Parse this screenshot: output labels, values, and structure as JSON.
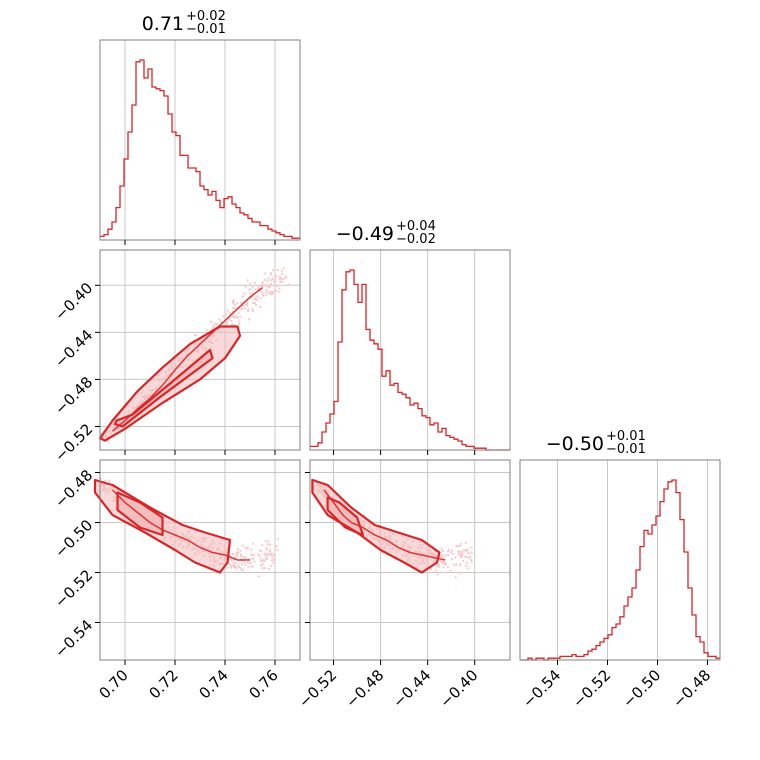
{
  "chart_data": {
    "type": "corner",
    "color": "#d62728",
    "fill_color": "#f3b8ba",
    "scatter_color": "#f7c9ca",
    "grid": true,
    "parameters": [
      {
        "index": 0,
        "title": {
          "median": "0.71",
          "plus": "+0.02",
          "minus": "−0.01"
        },
        "range": [
          0.69,
          0.77
        ],
        "ticks": [
          0.7,
          0.72,
          0.74,
          0.76
        ],
        "tick_labels": [
          "0.70",
          "0.72",
          "0.74",
          "0.76"
        ]
      },
      {
        "index": 1,
        "title": {
          "median": "−0.49",
          "plus": "+0.04",
          "minus": "−0.02"
        },
        "range": [
          -0.54,
          -0.37
        ],
        "ticks": [
          -0.52,
          -0.48,
          -0.44,
          -0.4
        ],
        "tick_labels": [
          "−0.52",
          "−0.48",
          "−0.44",
          "−0.40"
        ]
      },
      {
        "index": 2,
        "title": {
          "median": "−0.50",
          "plus": "+0.01",
          "minus": "−0.01"
        },
        "range": [
          -0.555,
          -0.475
        ],
        "ticks": [
          -0.54,
          -0.52,
          -0.5,
          -0.48
        ],
        "tick_labels": [
          "−0.54",
          "−0.52",
          "−0.50",
          "−0.48"
        ]
      }
    ],
    "histograms": [
      {
        "param": 0,
        "bins": [
          0.69,
          0.77
        ],
        "counts": [
          2,
          3,
          6,
          10,
          18,
          30,
          45,
          60,
          75,
          99,
          100,
          90,
          95,
          85,
          84,
          83,
          80,
          70,
          60,
          58,
          47,
          47,
          40,
          40,
          38,
          30,
          28,
          25,
          27,
          22,
          18,
          23,
          24,
          20,
          18,
          15,
          14,
          12,
          10,
          10,
          8,
          8,
          6,
          5,
          4,
          3,
          2,
          2,
          1,
          1
        ]
      },
      {
        "param": 1,
        "bins": [
          -0.54,
          -0.37
        ],
        "counts": [
          2,
          2,
          4,
          10,
          15,
          20,
          27,
          60,
          89,
          99,
          100,
          92,
          82,
          92,
          67,
          61,
          59,
          56,
          41,
          44,
          36,
          37,
          32,
          31,
          29,
          25,
          26,
          23,
          19,
          18,
          14,
          15,
          10,
          12,
          8,
          7,
          6,
          5,
          3,
          2,
          2,
          1,
          1,
          1,
          0,
          0,
          0,
          0,
          0,
          0
        ]
      },
      {
        "param": 2,
        "bins": [
          -0.555,
          -0.475
        ],
        "counts": [
          0,
          0,
          1,
          0,
          1,
          1,
          0,
          1,
          1,
          1,
          2,
          2,
          2,
          3,
          2,
          2,
          3,
          5,
          6,
          8,
          10,
          12,
          14,
          18,
          20,
          24,
          30,
          35,
          40,
          50,
          63,
          72,
          70,
          75,
          80,
          88,
          95,
          99,
          100,
          93,
          78,
          60,
          40,
          25,
          13,
          10,
          4,
          2,
          2,
          1
        ]
      }
    ],
    "pairs": [
      {
        "x_param": 0,
        "y_param": 1,
        "points": [
          [
            0.69,
            -0.531
          ],
          [
            0.695,
            -0.524
          ],
          [
            0.7,
            -0.515
          ],
          [
            0.705,
            -0.505
          ],
          [
            0.71,
            -0.496
          ],
          [
            0.715,
            -0.485
          ],
          [
            0.72,
            -0.472
          ],
          [
            0.725,
            -0.46
          ],
          [
            0.73,
            -0.45
          ],
          [
            0.735,
            -0.44
          ],
          [
            0.74,
            -0.43
          ],
          [
            0.745,
            -0.42
          ],
          [
            0.75,
            -0.41
          ],
          [
            0.755,
            -0.402
          ],
          [
            0.76,
            -0.398
          ],
          [
            0.765,
            -0.395
          ]
        ],
        "contours": [
          [
            [
              0.6965,
              -0.515
            ],
            [
              0.703,
              -0.51
            ],
            [
              0.72,
              -0.48
            ],
            [
              0.734,
              -0.455
            ],
            [
              0.735,
              -0.462
            ],
            [
              0.714,
              -0.495
            ],
            [
              0.699,
              -0.52
            ],
            [
              0.696,
              -0.518
            ]
          ],
          [
            [
              0.69,
              -0.53
            ],
            [
              0.692,
              -0.532
            ],
            [
              0.7,
              -0.522
            ],
            [
              0.715,
              -0.5
            ],
            [
              0.73,
              -0.48
            ],
            [
              0.74,
              -0.462
            ],
            [
              0.746,
              -0.443
            ],
            [
              0.745,
              -0.435
            ],
            [
              0.738,
              -0.435
            ],
            [
              0.726,
              -0.45
            ],
            [
              0.715,
              -0.47
            ],
            [
              0.705,
              -0.49
            ],
            [
              0.695,
              -0.515
            ]
          ]
        ]
      },
      {
        "x_param": 0,
        "y_param": 2,
        "points": [
          [
            0.69,
            -0.484
          ],
          [
            0.695,
            -0.487
          ],
          [
            0.7,
            -0.492
          ],
          [
            0.705,
            -0.496
          ],
          [
            0.71,
            -0.5
          ],
          [
            0.715,
            -0.503
          ],
          [
            0.72,
            -0.505
          ],
          [
            0.725,
            -0.507
          ],
          [
            0.73,
            -0.51
          ],
          [
            0.735,
            -0.512
          ],
          [
            0.74,
            -0.513
          ],
          [
            0.745,
            -0.515
          ],
          [
            0.75,
            -0.515
          ],
          [
            0.755,
            -0.514
          ],
          [
            0.76,
            -0.512
          ]
        ],
        "contours": [
          [
            [
              0.697,
              -0.488
            ],
            [
              0.706,
              -0.492
            ],
            [
              0.715,
              -0.498
            ],
            [
              0.715,
              -0.505
            ],
            [
              0.706,
              -0.502
            ],
            [
              0.697,
              -0.495
            ]
          ],
          [
            [
              0.688,
              -0.483
            ],
            [
              0.695,
              -0.485
            ],
            [
              0.71,
              -0.494
            ],
            [
              0.723,
              -0.501
            ],
            [
              0.732,
              -0.504
            ],
            [
              0.742,
              -0.507
            ],
            [
              0.741,
              -0.516
            ],
            [
              0.738,
              -0.52
            ],
            [
              0.728,
              -0.516
            ],
            [
              0.72,
              -0.511
            ],
            [
              0.708,
              -0.504
            ],
            [
              0.695,
              -0.497
            ],
            [
              0.688,
              -0.488
            ]
          ]
        ]
      },
      {
        "x_param": 1,
        "y_param": 2,
        "points": [
          [
            -0.535,
            -0.484
          ],
          [
            -0.528,
            -0.487
          ],
          [
            -0.52,
            -0.492
          ],
          [
            -0.512,
            -0.497
          ],
          [
            -0.505,
            -0.5
          ],
          [
            -0.495,
            -0.502
          ],
          [
            -0.485,
            -0.505
          ],
          [
            -0.475,
            -0.507
          ],
          [
            -0.465,
            -0.51
          ],
          [
            -0.455,
            -0.512
          ],
          [
            -0.445,
            -0.513
          ],
          [
            -0.435,
            -0.514
          ],
          [
            -0.425,
            -0.515
          ],
          [
            -0.415,
            -0.514
          ],
          [
            -0.405,
            -0.514
          ]
        ],
        "contours": [
          [
            [
              -0.525,
              -0.49
            ],
            [
              -0.515,
              -0.492
            ],
            [
              -0.5,
              -0.498
            ],
            [
              -0.495,
              -0.505
            ],
            [
              -0.51,
              -0.502
            ],
            [
              -0.525,
              -0.495
            ]
          ],
          [
            [
              -0.538,
              -0.483
            ],
            [
              -0.525,
              -0.485
            ],
            [
              -0.505,
              -0.494
            ],
            [
              -0.485,
              -0.501
            ],
            [
              -0.465,
              -0.504
            ],
            [
              -0.445,
              -0.507
            ],
            [
              -0.43,
              -0.512
            ],
            [
              -0.432,
              -0.516
            ],
            [
              -0.445,
              -0.52
            ],
            [
              -0.46,
              -0.516
            ],
            [
              -0.48,
              -0.511
            ],
            [
              -0.5,
              -0.504
            ],
            [
              -0.525,
              -0.497
            ],
            [
              -0.538,
              -0.488
            ]
          ]
        ]
      }
    ]
  }
}
